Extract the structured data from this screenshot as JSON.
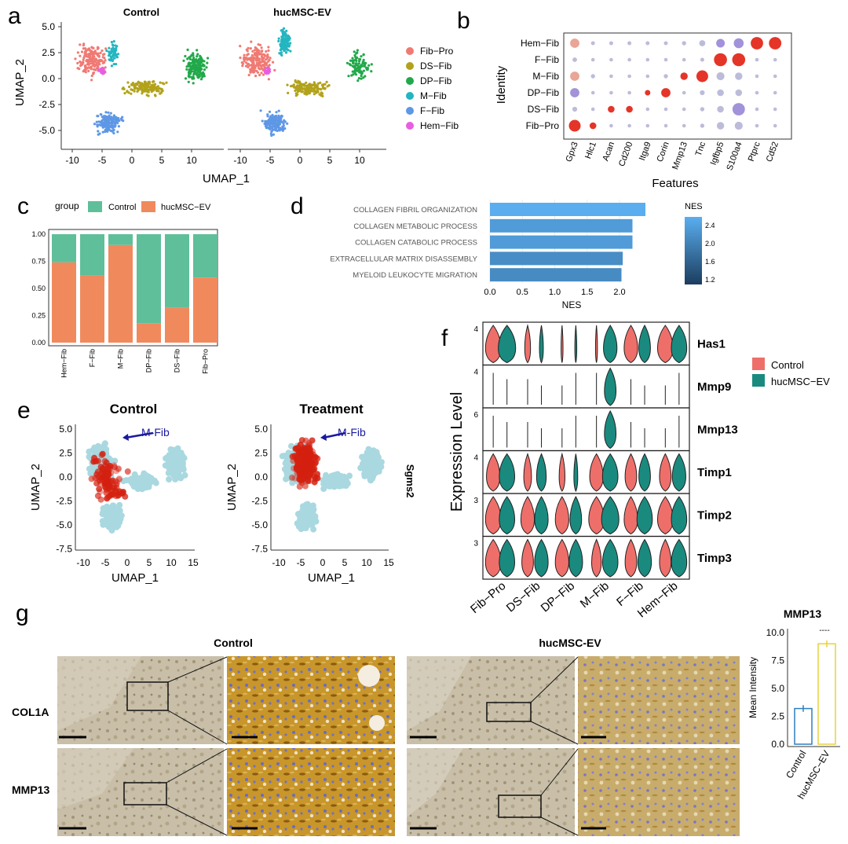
{
  "colors": {
    "control": "#5fbf9b",
    "hucmsc": "#f08a5d",
    "violin_control": "#ee6f6a",
    "violin_hucmsc": "#1a8a7f",
    "Fib-Pro": "#f07a73",
    "DS-Fib": "#b2a21b",
    "DP-Fib": "#22a84a",
    "M-Fib": "#24b6c0",
    "F-Fib": "#5e97e6",
    "Hem-Fib": "#e85ee0",
    "umap_bg": "#a9d8e0",
    "umap_high": "#d42010",
    "nes_low": "#1b3d5e",
    "nes_high": "#5aaef0",
    "bar_control": "#2f7fbf",
    "bar_hucmsc": "#e8d23a"
  },
  "panels": {
    "a": "a",
    "b": "b",
    "c": "c",
    "d": "d",
    "e": "e",
    "f": "f",
    "g": "g"
  },
  "a": {
    "titles": [
      "Control",
      "hucMSC-EV"
    ],
    "xlabel": "UMAP_1",
    "ylabel": "UMAP_2",
    "yticks": [
      "5.0",
      "2.5",
      "0.0",
      "-2.5",
      "-5.0"
    ],
    "xticks": [
      "-10",
      "-5",
      "0",
      "5",
      "10"
    ],
    "legend": [
      "Fib−Pro",
      "DS−Fib",
      "DP−Fib",
      "M−Fib",
      "F−Fib",
      "Hem−Fib"
    ]
  },
  "e": {
    "titles": [
      "Control",
      "Treatment"
    ],
    "arrow_label": "M-Fib",
    "gene": "Sgms2",
    "xlabel": "UMAP_1",
    "ylabel": "UMAP_2",
    "yticks": [
      "5.0",
      "2.5",
      "0.0",
      "-2.5",
      "-5.0",
      "-7.5"
    ],
    "xticks": [
      "-10",
      "-5",
      "0",
      "5",
      "10",
      "15"
    ]
  },
  "g": {
    "cond_titles": [
      "Control",
      "hucMSC-EV"
    ],
    "row_labels": [
      "COL1A",
      "MMP13"
    ],
    "bar_title": "MMP13",
    "bar_ylabel": "Mean Intensity",
    "bar_yticks": [
      "10.0",
      "7.5",
      "5.0",
      "2.5",
      "0.0"
    ],
    "bar_xticks": [
      "Control",
      "hucMSC−EV"
    ],
    "signif": "----"
  },
  "chart_data": [
    {
      "id": "b",
      "type": "scatter",
      "subtype": "dotplot",
      "xlabel": "Features",
      "ylabel": "Identity",
      "features": [
        "Gpx3",
        "Hlc1",
        "Acan",
        "Cd200",
        "Itga9",
        "Corin",
        "Mmp13",
        "Tnc",
        "Igfbp5",
        "S100a4",
        "Ptprc",
        "Cd52"
      ],
      "identities": [
        "Hem−Fib",
        "F−Fib",
        "M−Fib",
        "DP−Fib",
        "DS−Fib",
        "Fib−Pro"
      ],
      "size": [
        [
          0.55,
          0.12,
          0.12,
          0.12,
          0.12,
          0.12,
          0.15,
          0.3,
          0.5,
          0.6,
          0.8,
          0.8
        ],
        [
          0.18,
          0.1,
          0.1,
          0.1,
          0.1,
          0.1,
          0.1,
          0.12,
          0.85,
          0.85,
          0.1,
          0.1
        ],
        [
          0.55,
          0.15,
          0.1,
          0.1,
          0.1,
          0.15,
          0.4,
          0.75,
          0.45,
          0.4,
          0.1,
          0.1
        ],
        [
          0.55,
          0.1,
          0.1,
          0.1,
          0.25,
          0.55,
          0.1,
          0.2,
          0.35,
          0.35,
          0.1,
          0.1
        ],
        [
          0.2,
          0.1,
          0.35,
          0.35,
          0.1,
          0.1,
          0.1,
          0.15,
          0.35,
          0.8,
          0.1,
          0.1
        ],
        [
          0.75,
          0.35,
          0.1,
          0.1,
          0.1,
          0.1,
          0.1,
          0.15,
          0.4,
          0.45,
          0.1,
          0.1
        ]
      ],
      "expression": [
        [
          0.4,
          0.1,
          0.1,
          0.1,
          0.1,
          0.1,
          0.1,
          0.1,
          0.1,
          0.3,
          1,
          1
        ],
        [
          0.1,
          0.1,
          0.1,
          0.1,
          0.1,
          0.1,
          0.1,
          0.1,
          1,
          1,
          0.1,
          0.1
        ],
        [
          0.4,
          0.3,
          0.1,
          0.1,
          0.1,
          0.1,
          1,
          1,
          0.2,
          0.1,
          0.1,
          0.1
        ],
        [
          0.1,
          0.1,
          0.1,
          0.1,
          1,
          1,
          0.1,
          0.1,
          0.2,
          0.1,
          0.1,
          0.1
        ],
        [
          0.1,
          0.1,
          1,
          1,
          0.1,
          0.1,
          0.1,
          0.1,
          0.1,
          0.05,
          0.1,
          0.1
        ],
        [
          0.8,
          0.8,
          0.1,
          0.1,
          0.1,
          0.1,
          0.1,
          0.1,
          0.2,
          0.2,
          0.1,
          0.1
        ]
      ]
    },
    {
      "id": "c",
      "type": "bar",
      "subtype": "stacked-proportion",
      "legend_title": "group",
      "categories": [
        "Hem−Fib",
        "F−Fib",
        "M−Fib",
        "DP−Fib",
        "DS−Fib",
        "Fib−Pro"
      ],
      "series": [
        {
          "name": "Control",
          "values": [
            0.26,
            0.38,
            0.1,
            0.82,
            0.68,
            0.4
          ]
        },
        {
          "name": "hucMSC−EV",
          "values": [
            0.74,
            0.62,
            0.9,
            0.18,
            0.32,
            0.6
          ]
        }
      ],
      "ylim": [
        0,
        1
      ],
      "yticks": [
        "0.00",
        "0.25",
        "0.50",
        "0.75",
        "1.00"
      ]
    },
    {
      "id": "d",
      "type": "bar",
      "orientation": "horizontal",
      "categories": [
        "COLLAGEN FIBRIL ORGANIZATION",
        "COLLAGEN METABOLIC PROCESS",
        "COLLAGEN CATABOLIC PROCESS",
        "EXTRACELLULAR MATRIX DISASSEMBLY",
        "MYELOID LEUKOCYTE MIGRATION"
      ],
      "values": [
        2.4,
        2.2,
        2.2,
        2.05,
        2.03
      ],
      "xlabel": "NES",
      "xticks": [
        "0.0",
        "0.5",
        "1.0",
        "1.5",
        "2.0"
      ],
      "xlim": [
        0,
        2.55
      ],
      "colorbar_title": "NES",
      "colorbar_ticks": [
        "2.4",
        "2.0",
        "1.6",
        "1.2"
      ]
    },
    {
      "id": "f",
      "type": "area",
      "subtype": "violin",
      "ylabel": "Expression Level",
      "categories": [
        "Fib−Pro",
        "DS−Fib",
        "DP−Fib",
        "M−Fib",
        "F−Fib",
        "Hem−Fib"
      ],
      "legend": [
        "Control",
        "hucMSC−EV"
      ],
      "genes": [
        {
          "name": "Has1",
          "ytick": "4",
          "widths": [
            [
              0.8,
              0.9
            ],
            [
              0.3,
              0.2
            ],
            [
              0.1,
              0.1
            ],
            [
              0.1,
              0.7
            ],
            [
              0.7,
              0.6
            ],
            [
              0.8,
              0.8
            ]
          ]
        },
        {
          "name": "Mmp9",
          "ytick": "4",
          "widths": [
            [
              0.05,
              0.05
            ],
            [
              0.05,
              0.05
            ],
            [
              0.05,
              0.05
            ],
            [
              0.05,
              0.6
            ],
            [
              0.05,
              0.05
            ],
            [
              0.05,
              0.05
            ]
          ]
        },
        {
          "name": "Mmp13",
          "ytick": "6",
          "widths": [
            [
              0.05,
              0.05
            ],
            [
              0.05,
              0.05
            ],
            [
              0.05,
              0.05
            ],
            [
              0.05,
              0.6
            ],
            [
              0.05,
              0.05
            ],
            [
              0.05,
              0.05
            ]
          ]
        },
        {
          "name": "Timp1",
          "ytick": "4",
          "widths": [
            [
              0.7,
              0.8
            ],
            [
              0.4,
              0.5
            ],
            [
              0.3,
              0.2
            ],
            [
              0.7,
              0.8
            ],
            [
              0.6,
              0.6
            ],
            [
              0.6,
              0.7
            ]
          ]
        },
        {
          "name": "Timp2",
          "ytick": "3",
          "widths": [
            [
              0.8,
              0.8
            ],
            [
              0.7,
              0.7
            ],
            [
              0.7,
              0.6
            ],
            [
              0.8,
              0.9
            ],
            [
              0.7,
              0.8
            ],
            [
              0.8,
              0.8
            ]
          ]
        },
        {
          "name": "Timp3",
          "ytick": "3",
          "widths": [
            [
              0.8,
              0.8
            ],
            [
              0.6,
              0.7
            ],
            [
              0.7,
              0.7
            ],
            [
              0.5,
              0.8
            ],
            [
              0.6,
              0.7
            ],
            [
              0.6,
              0.8
            ]
          ]
        }
      ]
    },
    {
      "id": "g",
      "type": "bar",
      "title": "MMP13",
      "categories": [
        "Control",
        "hucMSC−EV"
      ],
      "values": [
        3.2,
        9.0
      ],
      "errors": [
        0.3,
        0.3
      ],
      "ylim": [
        0,
        10
      ],
      "ylabel": "Mean Intensity"
    }
  ]
}
